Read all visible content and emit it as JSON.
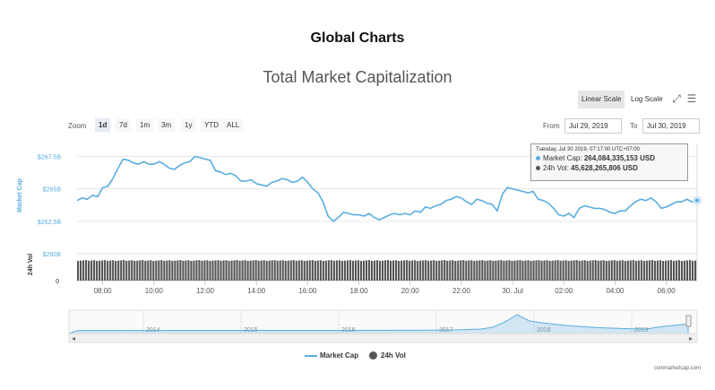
{
  "page_title": "Global Charts",
  "controls": {
    "scale_options": [
      "Linear Scale",
      "Log Scale"
    ],
    "active_scale": "Linear Scale",
    "zoom_label": "Zoom",
    "zoom_options": [
      "1d",
      "7d",
      "1m",
      "3m",
      "1y",
      "YTD",
      "ALL"
    ],
    "active_zoom": "1d",
    "from_label": "From",
    "from_value": "Jul 29, 2019",
    "to_label": "To",
    "to_value": "Jul 30, 2019",
    "icons": [
      "fullscreen-icon",
      "menu-icon"
    ]
  },
  "tooltip": {
    "time": "Tuesday, Jul 30 2019, 07:17:00 UTC+07:00",
    "market_cap_label": "Market Cap:",
    "market_cap_value": "264,084,335,153 USD",
    "volume_label": "24h Vol:",
    "volume_value": "45,628,265,806 USD"
  },
  "legend": {
    "market_cap": "Market Cap",
    "volume": "24h Vol"
  },
  "credit": "coinmarketcap.com",
  "colors": {
    "market_cap": "#5aade0",
    "volume": "#555555",
    "navigator": "#5aade0"
  },
  "chart_data": {
    "type": "line",
    "title": "Total Market Capitalization",
    "ylabel": "Market Cap",
    "volume_axis_label": "24h Vol",
    "x_ticks": [
      "08:00",
      "10:00",
      "12:00",
      "14:00",
      "16:00",
      "18:00",
      "20:00",
      "22:00",
      "30. Jul",
      "02:00",
      "04:00",
      "06:00"
    ],
    "y_ticks": [
      "$260B",
      "$262.5B",
      "$265B",
      "$267.5B"
    ],
    "y_tick_labels_shown": [
      "$260B",
      "$262.5B",
      "$265B",
      "$267.5B"
    ],
    "ylim": [
      260,
      268.5
    ],
    "volume_ticks": [
      "0"
    ],
    "x_hours_start": 7.0,
    "series": [
      {
        "name": "Market Cap",
        "unit": "billion USD",
        "x_hours": [
          7.0,
          7.2,
          7.4,
          7.6,
          7.8,
          8.0,
          8.2,
          8.4,
          8.6,
          8.8,
          9.0,
          9.2,
          9.4,
          9.6,
          9.8,
          10.0,
          10.2,
          10.4,
          10.6,
          10.8,
          11.0,
          11.2,
          11.4,
          11.6,
          11.8,
          12.0,
          12.2,
          12.4,
          12.6,
          12.8,
          13.0,
          13.2,
          13.4,
          13.6,
          13.8,
          14.0,
          14.2,
          14.4,
          14.6,
          14.8,
          15.0,
          15.2,
          15.4,
          15.6,
          15.8,
          16.0,
          16.2,
          16.4,
          16.6,
          16.8,
          17.0,
          17.2,
          17.4,
          17.6,
          17.8,
          18.0,
          18.2,
          18.4,
          18.6,
          18.8,
          19.0,
          19.2,
          19.4,
          19.6,
          19.8,
          20.0,
          20.2,
          20.4,
          20.6,
          20.8,
          21.0,
          21.2,
          21.4,
          21.6,
          21.8,
          22.0,
          22.2,
          22.4,
          22.6,
          22.8,
          23.0,
          23.2,
          23.4,
          23.6,
          23.8,
          24.0,
          24.2,
          24.4,
          24.6,
          24.8,
          25.0,
          25.2,
          25.4,
          25.6,
          25.8,
          26.0,
          26.2,
          26.4,
          26.6,
          26.8,
          27.0,
          27.2,
          27.4,
          27.6,
          27.8,
          28.0,
          28.2,
          28.4,
          28.6,
          28.8,
          29.0,
          29.2,
          29.4,
          29.6,
          29.8,
          30.0,
          30.2,
          30.4,
          30.6,
          30.8,
          31.0,
          31.2
        ],
        "values": [
          264.1,
          264.3,
          264.2,
          264.5,
          264.4,
          265.1,
          265.2,
          265.8,
          266.6,
          267.3,
          267.2,
          267.0,
          266.9,
          267.1,
          266.9,
          266.9,
          267.1,
          266.9,
          266.6,
          266.5,
          266.8,
          267.0,
          267.1,
          267.5,
          267.4,
          267.3,
          267.2,
          266.4,
          266.3,
          266.1,
          266.2,
          266.0,
          265.6,
          265.6,
          265.7,
          265.4,
          265.3,
          265.2,
          265.5,
          265.6,
          265.8,
          265.7,
          265.5,
          265.6,
          265.9,
          265.5,
          265.0,
          264.7,
          264.0,
          262.9,
          262.5,
          262.8,
          263.2,
          263.1,
          263.0,
          263.0,
          262.9,
          263.1,
          262.8,
          262.6,
          262.8,
          263.0,
          263.1,
          263.0,
          263.1,
          263.0,
          263.3,
          263.2,
          263.6,
          263.5,
          263.7,
          263.8,
          264.1,
          264.2,
          264.4,
          264.3,
          264.0,
          263.8,
          264.2,
          264.1,
          263.9,
          263.8,
          263.3,
          264.6,
          265.1,
          265.0,
          264.9,
          264.8,
          264.7,
          264.8,
          264.2,
          264.1,
          263.9,
          263.5,
          263.0,
          262.9,
          263.1,
          262.8,
          263.5,
          263.7,
          263.6,
          263.5,
          263.5,
          263.4,
          263.2,
          263.1,
          263.3,
          263.3,
          263.7,
          264.0,
          264.2,
          264.1,
          264.3,
          264.0,
          263.5,
          263.6,
          263.8,
          264.0,
          264.0,
          264.2,
          264.0,
          264.1
        ]
      }
    ],
    "volume": {
      "name": "24h Vol",
      "approx_level_billion_usd": 45.6,
      "bars": "dense, nearly uniform height across the window"
    },
    "navigator": {
      "years": [
        "2014",
        "2015",
        "2016",
        "2017",
        "2018",
        "2019"
      ]
    }
  }
}
